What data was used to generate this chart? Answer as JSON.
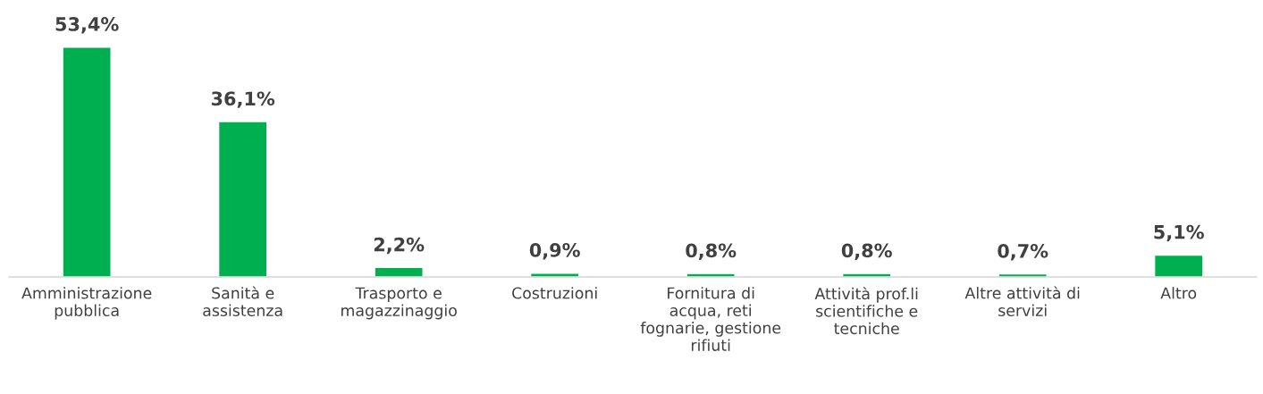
{
  "chart_data": {
    "type": "bar",
    "categories": [
      "Amministrazione\npubblica",
      "Sanità e\nassistenza",
      "Trasporto e\nmagazzinaggio",
      "Costruzioni",
      "Fornitura di\nacqua, reti\nfognarie, gestione\nrifiuti",
      "Attività prof.li\nscientifiche e\ntecniche",
      "Altre attività di\nservizi",
      "Altro"
    ],
    "values": [
      53.4,
      36.1,
      2.2,
      0.9,
      0.8,
      0.8,
      0.7,
      5.1
    ],
    "value_labels": [
      "53,4%",
      "36,1%",
      "2,2%",
      "0,9%",
      "0,8%",
      "0,8%",
      "0,7%",
      "5,1%"
    ],
    "color": "#00b050",
    "grid": false,
    "legend": false
  }
}
